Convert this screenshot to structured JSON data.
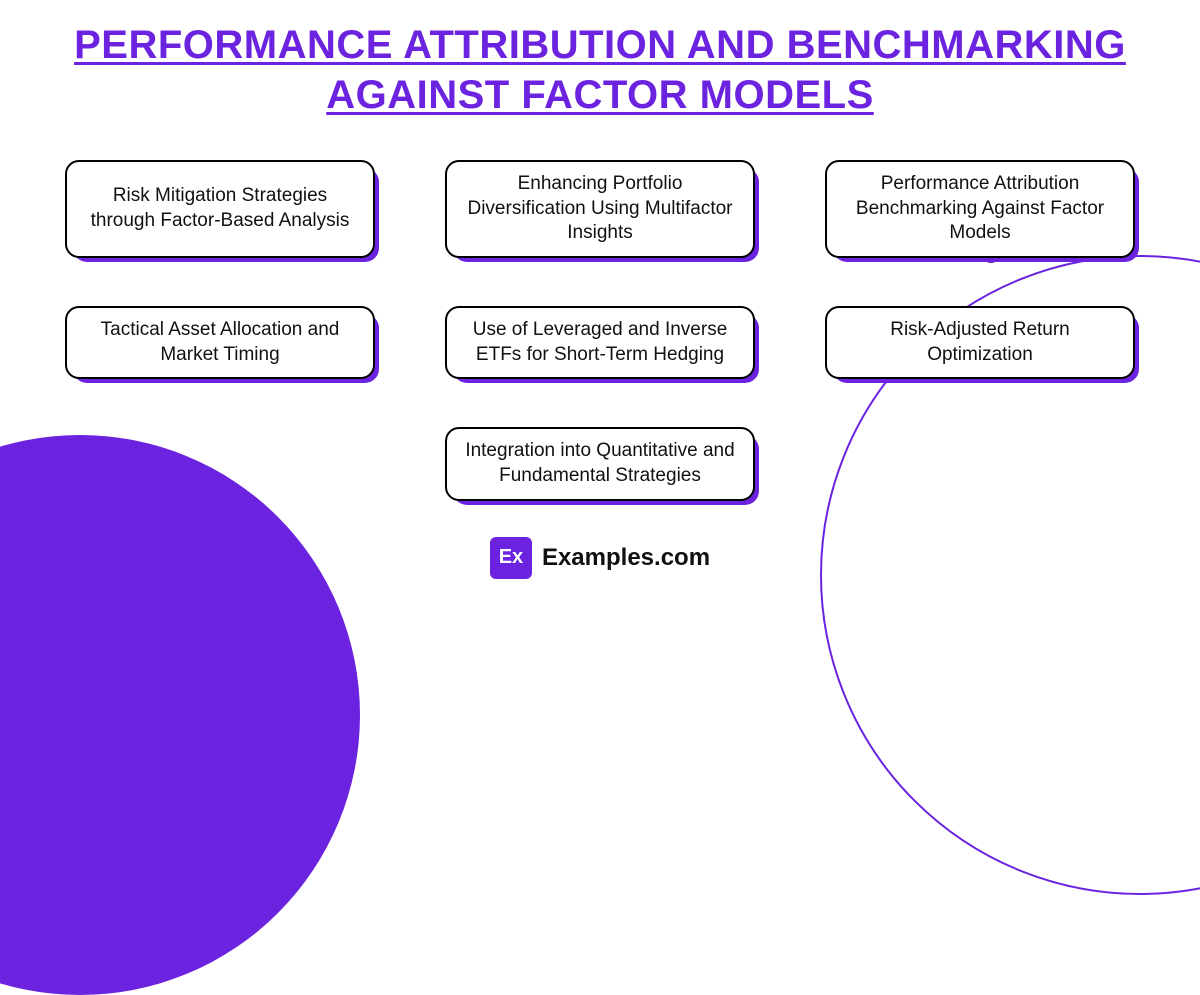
{
  "title": "PERFORMANCE ATTRIBUTION AND BENCHMARKING AGAINST FACTOR MODELS",
  "accent_color": "#6b23e0",
  "background_color": "#ffffff",
  "card_border_color": "#000000",
  "card_shadow_color": "#6b23e0",
  "title_fontsize": 40,
  "card_fontsize": 19,
  "cards": [
    {
      "label": "Risk Mitigation Strategies through Factor-Based Analysis"
    },
    {
      "label": "Enhancing Portfolio Diversification Using Multifactor Insights"
    },
    {
      "label": "Performance Attribution Benchmarking Against Factor Models"
    },
    {
      "label": "Tactical Asset Allocation and Market Timing"
    },
    {
      "label": "Use of Leveraged and Inverse ETFs for Short-Term Hedging"
    },
    {
      "label": "Risk-Adjusted Return Optimization"
    },
    {
      "label": "Integration into Quantitative and Fundamental Strategies"
    }
  ],
  "logo": {
    "badge_text": "Ex",
    "site_text": "Examples.com",
    "badge_bg": "#6b23e0",
    "badge_fg": "#ffffff"
  },
  "decor": {
    "left_circle_color": "#6b23e0",
    "right_ring_color": "#6b23e0"
  }
}
